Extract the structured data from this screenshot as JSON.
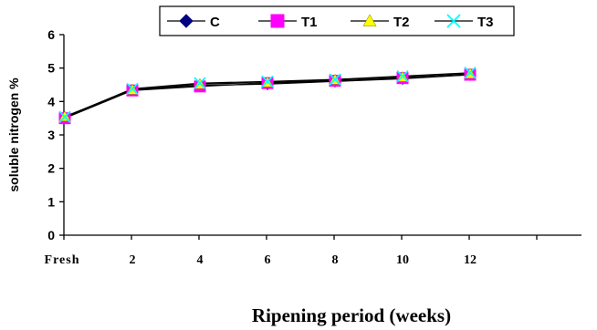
{
  "chart_data": {
    "type": "line",
    "categories": [
      "Fresh",
      "2",
      "4",
      "6",
      "8",
      "10",
      "12"
    ],
    "ylabel": "soluble nitrogen %",
    "xlabel": "Ripening period (weeks)",
    "ylim": [
      0,
      6
    ],
    "yticks": [
      "0",
      "1",
      "2",
      "3",
      "4",
      "5",
      "6"
    ],
    "legend_position": "top",
    "grid": false,
    "series": [
      {
        "name": "C",
        "values": [
          3.52,
          4.34,
          4.48,
          4.52,
          4.6,
          4.68,
          4.8
        ],
        "color": "#000080",
        "marker": "diamond"
      },
      {
        "name": "T1",
        "values": [
          3.5,
          4.33,
          4.45,
          4.55,
          4.62,
          4.7,
          4.8
        ],
        "color": "#ff00ff",
        "marker": "square"
      },
      {
        "name": "T2",
        "values": [
          3.55,
          4.35,
          4.52,
          4.57,
          4.65,
          4.73,
          4.83
        ],
        "color": "#ffff00",
        "marker": "triangle"
      },
      {
        "name": "T3",
        "values": [
          3.54,
          4.38,
          4.55,
          4.6,
          4.66,
          4.76,
          4.86
        ],
        "color": "#00ffff",
        "marker": "x"
      }
    ]
  }
}
